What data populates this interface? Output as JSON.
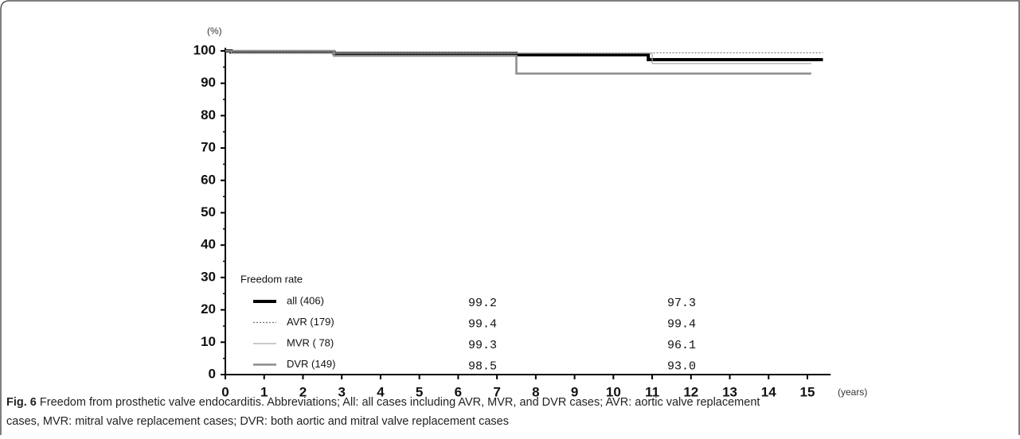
{
  "chart_data": {
    "type": "step",
    "y_label": "(%)",
    "x_label": "(years)",
    "legend_title": "Freedom rate",
    "xlim": [
      0,
      15.6
    ],
    "xticks": [
      0,
      1,
      2,
      3,
      4,
      5,
      6,
      7,
      8,
      9,
      10,
      11,
      12,
      13,
      14,
      15
    ],
    "ylim": [
      0,
      100
    ],
    "yticks": [
      0,
      10,
      20,
      30,
      40,
      50,
      60,
      70,
      80,
      90,
      100
    ],
    "series": [
      {
        "name": "all  (406)",
        "color": "#000000",
        "width": 4,
        "dash": "none",
        "x": [
          0,
          0.15,
          2.8,
          7.5,
          10.9,
          15.4
        ],
        "values": [
          100,
          99.6,
          99.2,
          98.8,
          97.3,
          97.3
        ],
        "rates": [
          "99.2",
          "97.3"
        ]
      },
      {
        "name": "AVR (179)",
        "color": "#777777",
        "width": 1.2,
        "dash": "2,2",
        "x": [
          0,
          0.15,
          15.4
        ],
        "values": [
          100,
          99.4,
          99.4
        ],
        "rates": [
          "99.4",
          "99.4"
        ]
      },
      {
        "name": "MVR ( 78)",
        "color": "#aaaaaa",
        "width": 1.2,
        "dash": "none",
        "x": [
          0,
          0.15,
          11,
          15.1
        ],
        "values": [
          100,
          99.3,
          96.1,
          96.1
        ],
        "rates": [
          "99.3",
          "96.1"
        ]
      },
      {
        "name": "DVR (149)",
        "color": "#8c8c8c",
        "width": 2.5,
        "dash": "none",
        "x": [
          0,
          2.8,
          7.5,
          15.1
        ],
        "values": [
          100,
          98.5,
          93.0,
          93.0
        ],
        "rates": [
          "98.5",
          "93.0"
        ]
      }
    ]
  },
  "caption": {
    "label": "Fig. 6",
    "text": " Freedom from prosthetic valve endocarditis. Abbreviations; All: all cases including AVR, MVR, and DVR cases; AVR: aortic valve replacement",
    "text2": "cases, MVR: mitral valve replacement cases; DVR: both aortic and mitral valve replacement cases"
  }
}
